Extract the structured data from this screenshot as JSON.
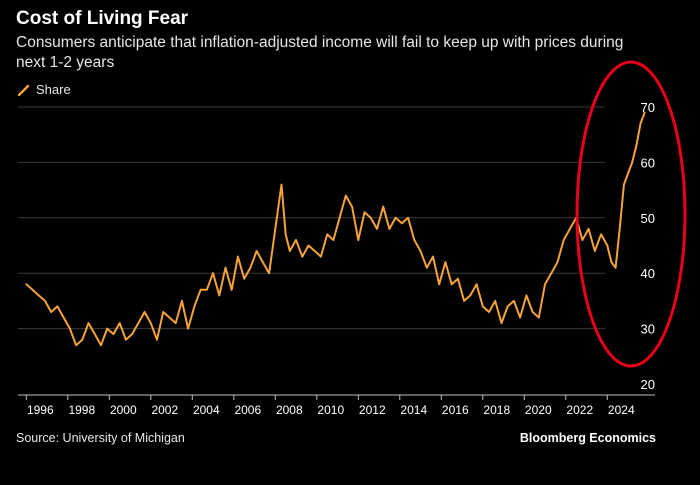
{
  "header": {
    "title": "Cost of Living Fear",
    "subtitle": "Consumers anticipate that inflation-adjusted income will fail to keep up with prices during next 1-2 years",
    "share_label": "Share"
  },
  "footer": {
    "source": "Source: University of Michigan",
    "brand": "Bloomberg Economics"
  },
  "colors": {
    "line": "#f4a23a",
    "highlight": "#e8001c",
    "grid": "#3a3a3a",
    "background": "#000000"
  },
  "chart_data": {
    "type": "line",
    "title": "Cost of Living Fear",
    "xlabel": "",
    "ylabel": "",
    "xlim": [
      1995.6,
      2026.3
    ],
    "ylim": [
      20,
      70
    ],
    "yticks": [
      20,
      30,
      40,
      50,
      60,
      70
    ],
    "xticks": [
      "1996",
      "1998",
      "2000",
      "2002",
      "2004",
      "2006",
      "2008",
      "2010",
      "2012",
      "2014",
      "2016",
      "2018",
      "2020",
      "2022",
      "2024"
    ],
    "grid": true,
    "legend": "none",
    "annotation": "red ellipse highlighting 2023-2025",
    "series": [
      {
        "name": "",
        "x": [
          1996.0,
          1996.3,
          1996.6,
          1996.9,
          1997.2,
          1997.5,
          1997.8,
          1998.1,
          1998.4,
          1998.7,
          1999.0,
          1999.3,
          1999.6,
          1999.9,
          2000.2,
          2000.5,
          2000.8,
          2001.1,
          2001.4,
          2001.7,
          2002.0,
          2002.3,
          2002.6,
          2002.9,
          2003.2,
          2003.5,
          2003.8,
          2004.1,
          2004.4,
          2004.7,
          2005.0,
          2005.3,
          2005.6,
          2005.9,
          2006.2,
          2006.5,
          2006.8,
          2007.1,
          2007.4,
          2007.7,
          2008.0,
          2008.3,
          2008.5,
          2008.7,
          2009.0,
          2009.3,
          2009.6,
          2009.9,
          2010.2,
          2010.5,
          2010.8,
          2011.1,
          2011.4,
          2011.7,
          2012.0,
          2012.3,
          2012.6,
          2012.9,
          2013.2,
          2013.5,
          2013.8,
          2014.1,
          2014.4,
          2014.7,
          2015.0,
          2015.3,
          2015.6,
          2015.9,
          2016.2,
          2016.5,
          2016.8,
          2017.1,
          2017.4,
          2017.7,
          2018.0,
          2018.3,
          2018.6,
          2018.9,
          2019.2,
          2019.5,
          2019.8,
          2020.1,
          2020.4,
          2020.7,
          2021.0,
          2021.3,
          2021.6,
          2021.9,
          2022.2,
          2022.5,
          2022.8,
          2023.1,
          2023.4,
          2023.7,
          2024.0,
          2024.2,
          2024.4,
          2024.6,
          2024.8,
          2025.0,
          2025.2,
          2025.4,
          2025.6,
          2025.8
        ],
        "values": [
          38,
          37,
          36,
          35,
          33,
          34,
          32,
          30,
          27,
          28,
          31,
          29,
          27,
          30,
          29,
          31,
          28,
          29,
          31,
          33,
          31,
          28,
          33,
          32,
          31,
          35,
          30,
          34,
          37,
          37,
          40,
          36,
          41,
          37,
          43,
          39,
          41,
          44,
          42,
          40,
          48,
          56,
          47,
          44,
          46,
          43,
          45,
          44,
          43,
          47,
          46,
          50,
          54,
          52,
          46,
          51,
          50,
          48,
          52,
          48,
          50,
          49,
          50,
          46,
          44,
          41,
          43,
          38,
          42,
          38,
          39,
          35,
          36,
          38,
          34,
          33,
          35,
          31,
          34,
          35,
          32,
          36,
          33,
          32,
          38,
          40,
          42,
          46,
          48,
          50,
          46,
          48,
          44,
          47,
          45,
          42,
          41,
          48,
          56,
          58,
          60,
          63,
          67,
          69
        ]
      }
    ]
  }
}
